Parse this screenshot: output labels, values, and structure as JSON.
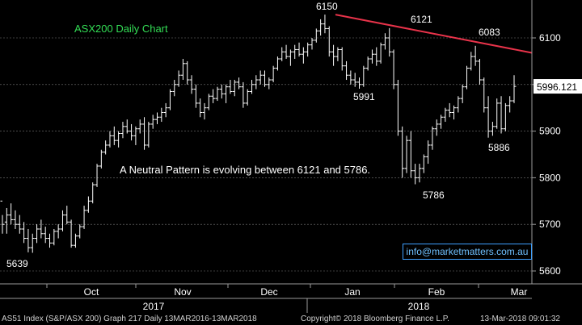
{
  "chart_data": {
    "type": "ohlc",
    "title": "ASX200 Daily Chart",
    "annotation": "A Neutral Pattern is evolving between 6121 and 5786.",
    "ylim": [
      5560,
      6180
    ],
    "y_ticks": [
      5600,
      5700,
      5800,
      5900,
      6000,
      6100
    ],
    "y_tick_labels": [
      "5600",
      "5700",
      "5800",
      "5900",
      "6000",
      "6100"
    ],
    "last_price_label": "5996.121",
    "last_price": 5996.121,
    "x_month_labels": [
      "Oct",
      "Nov",
      "Dec",
      "Jan",
      "Feb",
      "Mar"
    ],
    "x_year_labels": [
      "2017",
      "2018"
    ],
    "point_labels": [
      {
        "text": "5639",
        "value": 5639
      },
      {
        "text": "6150",
        "value": 6150
      },
      {
        "text": "6121",
        "value": 6121
      },
      {
        "text": "5991",
        "value": 5991
      },
      {
        "text": "6083",
        "value": 6083
      },
      {
        "text": "5786",
        "value": 5786
      },
      {
        "text": "5886",
        "value": 5886
      }
    ],
    "trendline": {
      "from": 6150,
      "to": 6068,
      "color": "#e8334a"
    },
    "bars": [
      [
        5750,
        5720,
        5680,
        5700
      ],
      [
        5705,
        5735,
        5680,
        5720
      ],
      [
        5720,
        5745,
        5700,
        5710
      ],
      [
        5710,
        5730,
        5690,
        5700
      ],
      [
        5700,
        5720,
        5680,
        5690
      ],
      [
        5690,
        5705,
        5660,
        5670
      ],
      [
        5670,
        5690,
        5640,
        5650
      ],
      [
        5650,
        5680,
        5639,
        5670
      ],
      [
        5670,
        5700,
        5660,
        5690
      ],
      [
        5690,
        5710,
        5670,
        5680
      ],
      [
        5680,
        5695,
        5660,
        5670
      ],
      [
        5670,
        5680,
        5650,
        5660
      ],
      [
        5660,
        5690,
        5655,
        5685
      ],
      [
        5685,
        5700,
        5670,
        5690
      ],
      [
        5690,
        5730,
        5685,
        5720
      ],
      [
        5720,
        5740,
        5700,
        5705
      ],
      [
        5705,
        5710,
        5650,
        5655
      ],
      [
        5655,
        5680,
        5650,
        5675
      ],
      [
        5675,
        5700,
        5670,
        5695
      ],
      [
        5695,
        5740,
        5690,
        5730
      ],
      [
        5730,
        5760,
        5725,
        5750
      ],
      [
        5750,
        5790,
        5745,
        5785
      ],
      [
        5785,
        5830,
        5780,
        5825
      ],
      [
        5825,
        5860,
        5820,
        5855
      ],
      [
        5855,
        5880,
        5850,
        5870
      ],
      [
        5870,
        5900,
        5865,
        5890
      ],
      [
        5890,
        5910,
        5870,
        5880
      ],
      [
        5880,
        5900,
        5865,
        5895
      ],
      [
        5895,
        5920,
        5885,
        5910
      ],
      [
        5910,
        5925,
        5895,
        5900
      ],
      [
        5900,
        5915,
        5880,
        5890
      ],
      [
        5890,
        5910,
        5870,
        5905
      ],
      [
        5905,
        5925,
        5895,
        5915
      ],
      [
        5915,
        5930,
        5860,
        5870
      ],
      [
        5870,
        5920,
        5865,
        5915
      ],
      [
        5915,
        5935,
        5905,
        5925
      ],
      [
        5925,
        5940,
        5915,
        5930
      ],
      [
        5930,
        5950,
        5920,
        5940
      ],
      [
        5940,
        5960,
        5930,
        5950
      ],
      [
        5950,
        5990,
        5945,
        5985
      ],
      [
        5985,
        6010,
        5975,
        6000
      ],
      [
        6000,
        6030,
        5995,
        6020
      ],
      [
        6020,
        6055,
        6010,
        6045
      ],
      [
        6045,
        6050,
        6000,
        6010
      ],
      [
        6010,
        6020,
        5980,
        5990
      ],
      [
        5990,
        6000,
        5950,
        5960
      ],
      [
        5960,
        5970,
        5930,
        5940
      ],
      [
        5940,
        5960,
        5925,
        5950
      ],
      [
        5950,
        5980,
        5945,
        5975
      ],
      [
        5975,
        5990,
        5960,
        5970
      ],
      [
        5970,
        5995,
        5965,
        5990
      ],
      [
        5990,
        6000,
        5970,
        5980
      ],
      [
        5980,
        6000,
        5960,
        5995
      ],
      [
        5995,
        6010,
        5980,
        5985
      ],
      [
        5985,
        6010,
        5975,
        6005
      ],
      [
        6005,
        6015,
        5990,
        5995
      ],
      [
        5995,
        6005,
        5950,
        5960
      ],
      [
        5960,
        5990,
        5955,
        5985
      ],
      [
        5985,
        6010,
        5980,
        6000
      ],
      [
        6000,
        6020,
        5990,
        6010
      ],
      [
        6010,
        6030,
        6000,
        6020
      ],
      [
        6020,
        6030,
        5995,
        6000
      ],
      [
        6000,
        6015,
        5990,
        6010
      ],
      [
        6010,
        6040,
        6005,
        6035
      ],
      [
        6035,
        6060,
        6030,
        6055
      ],
      [
        6055,
        6080,
        6050,
        6070
      ],
      [
        6070,
        6085,
        6055,
        6060
      ],
      [
        6060,
        6075,
        6040,
        6070
      ],
      [
        6070,
        6085,
        6055,
        6075
      ],
      [
        6075,
        6090,
        6060,
        6065
      ],
      [
        6065,
        6080,
        6045,
        6070
      ],
      [
        6070,
        6090,
        6060,
        6085
      ],
      [
        6085,
        6100,
        6075,
        6095
      ],
      [
        6095,
        6120,
        6090,
        6115
      ],
      [
        6115,
        6140,
        6105,
        6130
      ],
      [
        6130,
        6150,
        6110,
        6120
      ],
      [
        6120,
        6125,
        6060,
        6070
      ],
      [
        6070,
        6085,
        6040,
        6060
      ],
      [
        6060,
        6080,
        6050,
        6075
      ],
      [
        6075,
        6080,
        6030,
        6040
      ],
      [
        6040,
        6050,
        6010,
        6020
      ],
      [
        6020,
        6030,
        6000,
        6010
      ],
      [
        6010,
        6025,
        5995,
        6005
      ],
      [
        6005,
        6015,
        5991,
        6000
      ],
      [
        6000,
        6040,
        5995,
        6035
      ],
      [
        6035,
        6060,
        6030,
        6055
      ],
      [
        6055,
        6075,
        6045,
        6065
      ],
      [
        6065,
        6080,
        6040,
        6050
      ],
      [
        6050,
        6090,
        6045,
        6085
      ],
      [
        6085,
        6110,
        6075,
        6100
      ],
      [
        6100,
        6121,
        6060,
        6070
      ],
      [
        6070,
        6075,
        5990,
        6000
      ],
      [
        6000,
        6010,
        5890,
        5900
      ],
      [
        5900,
        5910,
        5800,
        5820
      ],
      [
        5820,
        5890,
        5810,
        5880
      ],
      [
        5880,
        5900,
        5800,
        5815
      ],
      [
        5815,
        5830,
        5786,
        5800
      ],
      [
        5800,
        5830,
        5790,
        5820
      ],
      [
        5820,
        5850,
        5810,
        5845
      ],
      [
        5845,
        5880,
        5830,
        5870
      ],
      [
        5870,
        5910,
        5860,
        5905
      ],
      [
        5905,
        5925,
        5890,
        5915
      ],
      [
        5915,
        5935,
        5905,
        5930
      ],
      [
        5930,
        5950,
        5920,
        5945
      ],
      [
        5945,
        5960,
        5930,
        5940
      ],
      [
        5940,
        5955,
        5925,
        5950
      ],
      [
        5950,
        5975,
        5940,
        5970
      ],
      [
        5970,
        6000,
        5960,
        5995
      ],
      [
        5995,
        6040,
        5990,
        6035
      ],
      [
        6035,
        6070,
        6030,
        6060
      ],
      [
        6060,
        6083,
        6040,
        6050
      ],
      [
        6050,
        6055,
        6000,
        6010
      ],
      [
        6010,
        6015,
        5940,
        5950
      ],
      [
        5950,
        5975,
        5886,
        5900
      ],
      [
        5900,
        5920,
        5890,
        5910
      ],
      [
        5910,
        5970,
        5905,
        5960
      ],
      [
        5960,
        5975,
        5895,
        5905
      ],
      [
        5905,
        5960,
        5900,
        5955
      ],
      [
        5955,
        5975,
        5940,
        5965
      ],
      [
        5965,
        6020,
        5960,
        5996
      ]
    ]
  },
  "watermark": "info@marketmatters.com.au",
  "footer": {
    "index": "AS51 Index (S&P/ASX 200) Graph 217  Daily 13MAR2016-13MAR2018",
    "copyright": "Copyright© 2018 Bloomberg Finance L.P.",
    "timestamp": "13-Mar-2018 09:01:32"
  }
}
